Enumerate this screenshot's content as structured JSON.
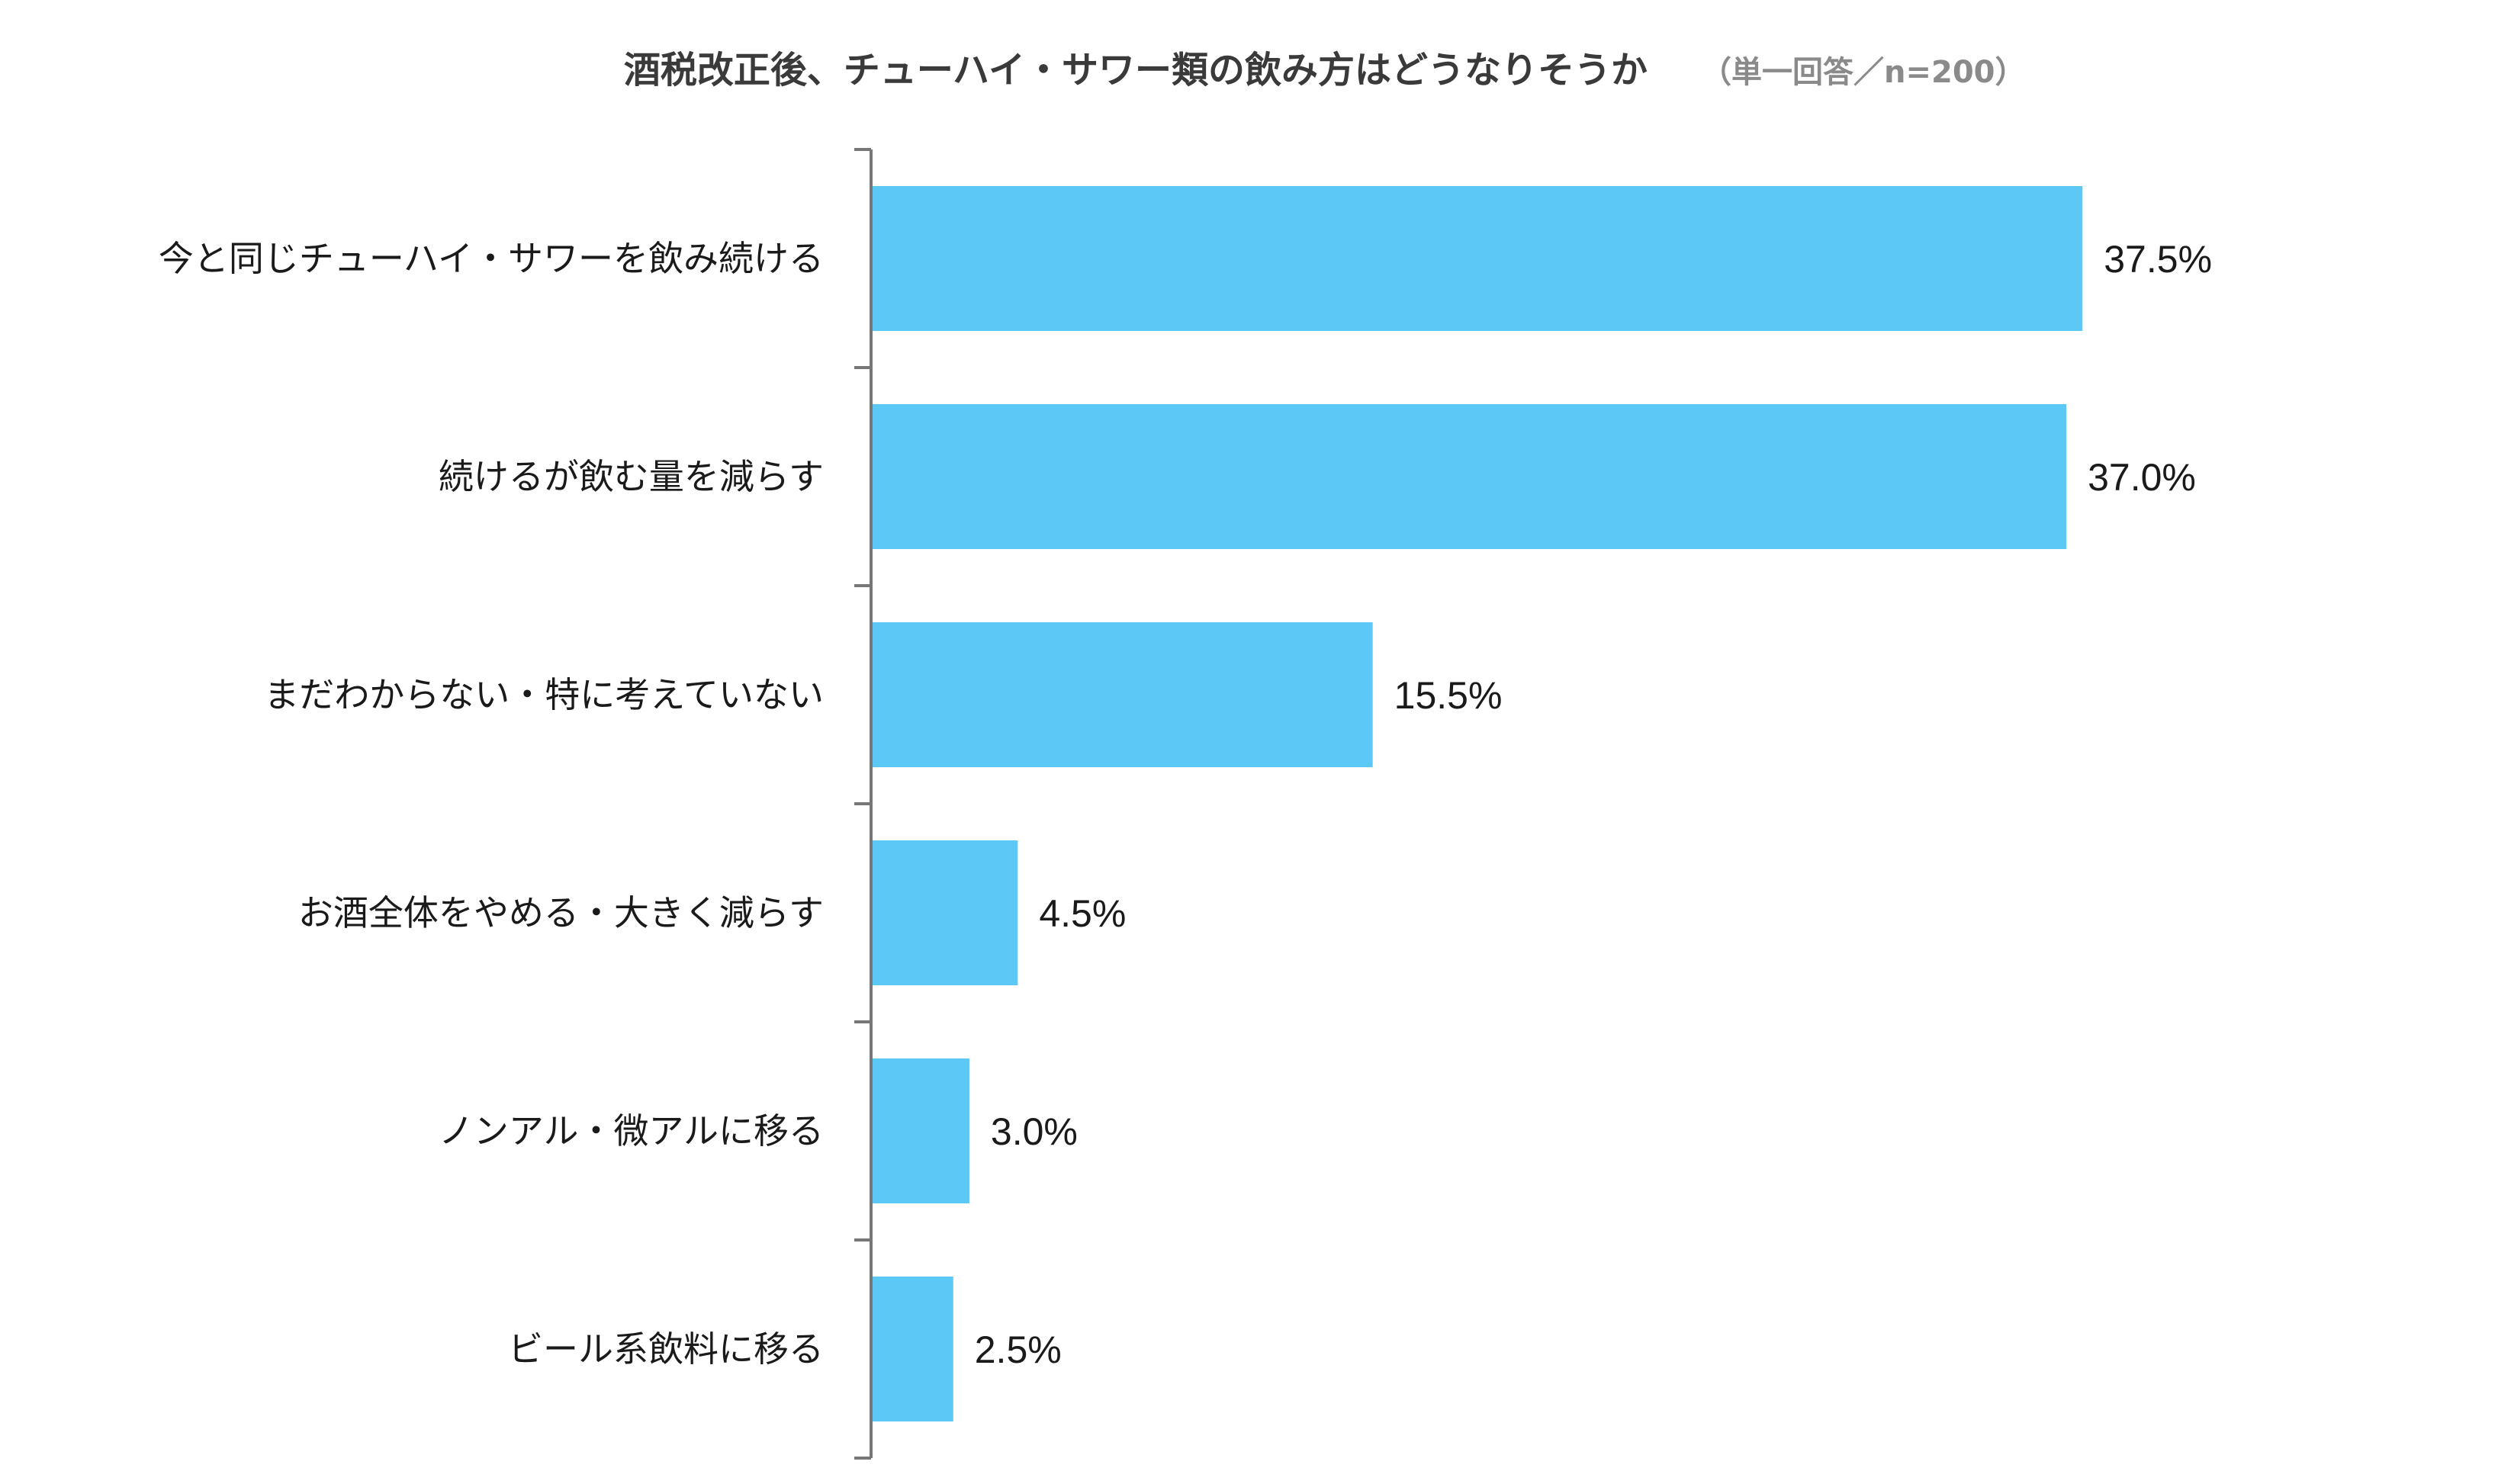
{
  "chart_data": {
    "type": "bar",
    "orientation": "horizontal",
    "title": "酒税改正後、チューハイ・サワー類の飲み方はどうなりそうか",
    "subtitle": "（単一回答／n=200）",
    "categories": [
      "今と同じチューハイ・サワーを飲み続ける",
      "続けるが飲む量を減らす",
      "まだわからない・特に考えていない",
      "お酒全体をやめる・大きく減らす",
      "ノンアル・微アルに移る",
      "ビール系飲料に移る"
    ],
    "values": [
      37.5,
      37.0,
      15.5,
      4.5,
      3.0,
      2.5
    ],
    "value_labels": [
      "37.5%",
      "37.0%",
      "15.5%",
      "4.5%",
      "3.0%",
      "2.5%"
    ],
    "bar_color": "#5BC8F5",
    "axis_color": "#777777",
    "grid": false,
    "legend": "none"
  }
}
